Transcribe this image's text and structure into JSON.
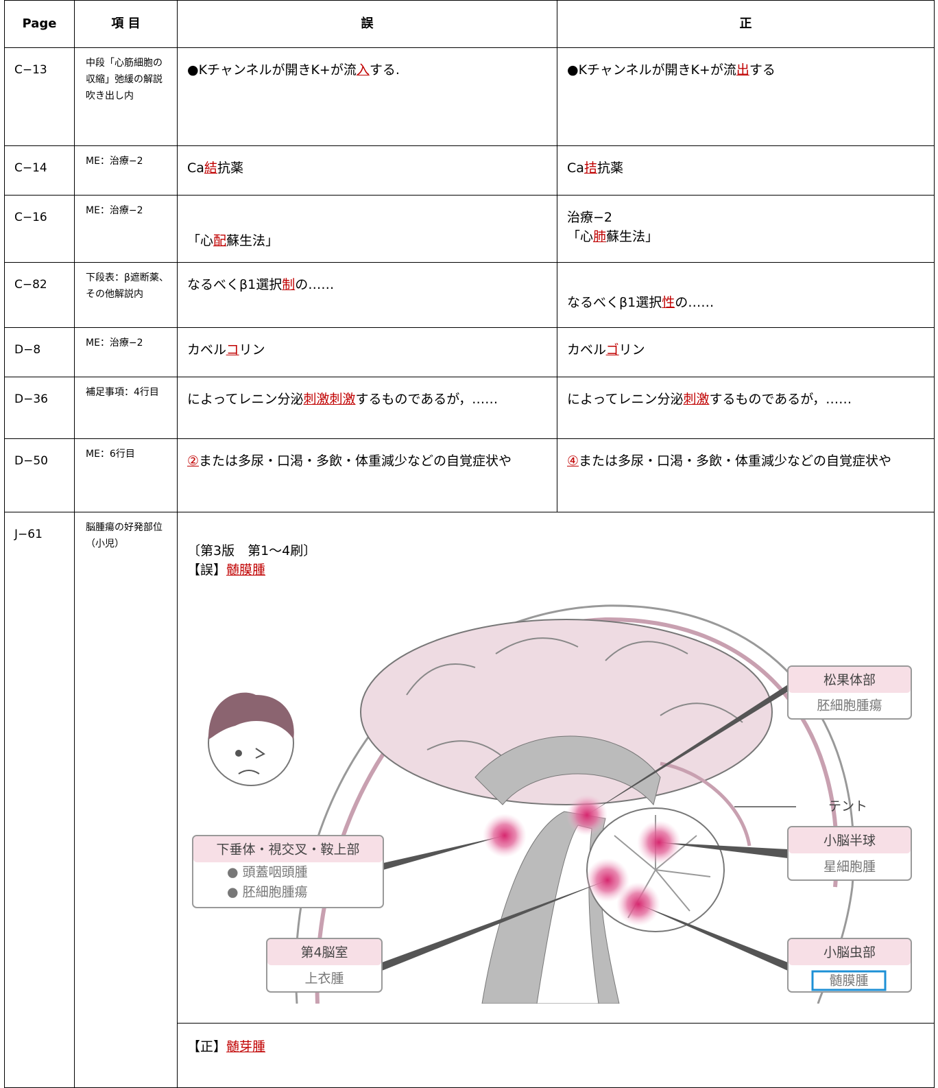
{
  "header": {
    "page": "Page",
    "item": "項 目",
    "wrong": "誤",
    "correct": "正"
  },
  "rows": [
    {
      "page": "C−13",
      "item": "中段「心筋細胞の収縮」弛緩の解説吹き出し内",
      "wrong": [
        "●Kチャンネルが開きK+が流",
        {
          "text": "入",
          "color": "#c00000"
        },
        "する."
      ],
      "correct": [
        "●Kチャンネルが開きK+が流",
        {
          "text": "出",
          "color": "#c00000"
        },
        "する"
      ]
    },
    {
      "page": "C−14",
      "item": "ME：治療−2",
      "wrong": [
        "Ca",
        {
          "text": "結",
          "color": "#c00000"
        },
        "抗薬"
      ],
      "correct": [
        "Ca",
        {
          "text": "拮",
          "color": "#c00000"
        },
        "抗薬"
      ]
    },
    {
      "page": "C−16",
      "item": "ME：治療−2",
      "wrong": [
        "「心",
        {
          "text": "配",
          "color": "#c00000"
        },
        "蘇生法」"
      ],
      "correct": [
        "治療−2\n「心",
        {
          "text": "肺",
          "color": "#c00000"
        },
        "蘇生法」"
      ]
    },
    {
      "page": "C−82",
      "item": "下段表：β遮断薬、その他解説内",
      "wrong": [
        "なるべくβ1選択",
        {
          "text": "制",
          "color": "#c00000"
        },
        "の……"
      ],
      "correct": [
        "なるべくβ1選択",
        {
          "text": "性",
          "color": "#c00000"
        },
        "の……"
      ]
    },
    {
      "page": "D−8",
      "item": "ME：治療−2",
      "wrong": [
        "カベル",
        {
          "text": "コ",
          "color": "#c00000"
        },
        "リン"
      ],
      "correct": [
        "カベル",
        {
          "text": "ゴ",
          "color": "#c00000"
        },
        "リン"
      ]
    },
    {
      "page": "D−36",
      "item": "補足事項：4行目",
      "wrong": [
        "によってレニン分泌",
        {
          "text": "刺激刺激",
          "color": "#c00000"
        },
        "するものであるが，……"
      ],
      "correct": [
        "によってレニン分泌",
        {
          "text": "刺激",
          "color": "#c00000"
        },
        "するものであるが，……"
      ]
    },
    {
      "page": "D−50",
      "item": "ME：6行目",
      "wrong": [
        {
          "text": "②",
          "color": "#c00000"
        },
        "または多尿・口渇・多飲・体重減少などの自覚症状や"
      ],
      "correct": [
        {
          "text": "④",
          "color": "#c00000"
        },
        "または多尿・口渇・多飲・体重減少などの自覚症状や"
      ]
    }
  ],
  "figure_row": {
    "page": "J−61",
    "item": "脳腫瘍の好発部位（小児）",
    "wrong": [
      "〔第3版　第1〜4刷〕\n【誤】",
      {
        "text": "髄膜腫",
        "color": "#c00000"
      }
    ],
    "figure": {
      "pineal": "松果体部",
      "pineal_tumor": "胚細胞腫瘍",
      "tent": "テント",
      "pituitary": "下垂体・視交叉・鞍上部",
      "pituitary_tumor_1": "● 頭蓋咽頭腫",
      "pituitary_tumor_2": "● 胚細胞腫瘍",
      "hemisphere": "小脳半球",
      "hemisphere_tumor": "星細胞腫",
      "ventricle": "第4脳室",
      "ventricle_tumor": "上衣腫",
      "vermis": "小脳虫部",
      "vermis_tumor": "髄膜腫"
    },
    "correct": [
      "【正】",
      {
        "text": "髄芽腫",
        "color": "#c00000"
      }
    ]
  }
}
